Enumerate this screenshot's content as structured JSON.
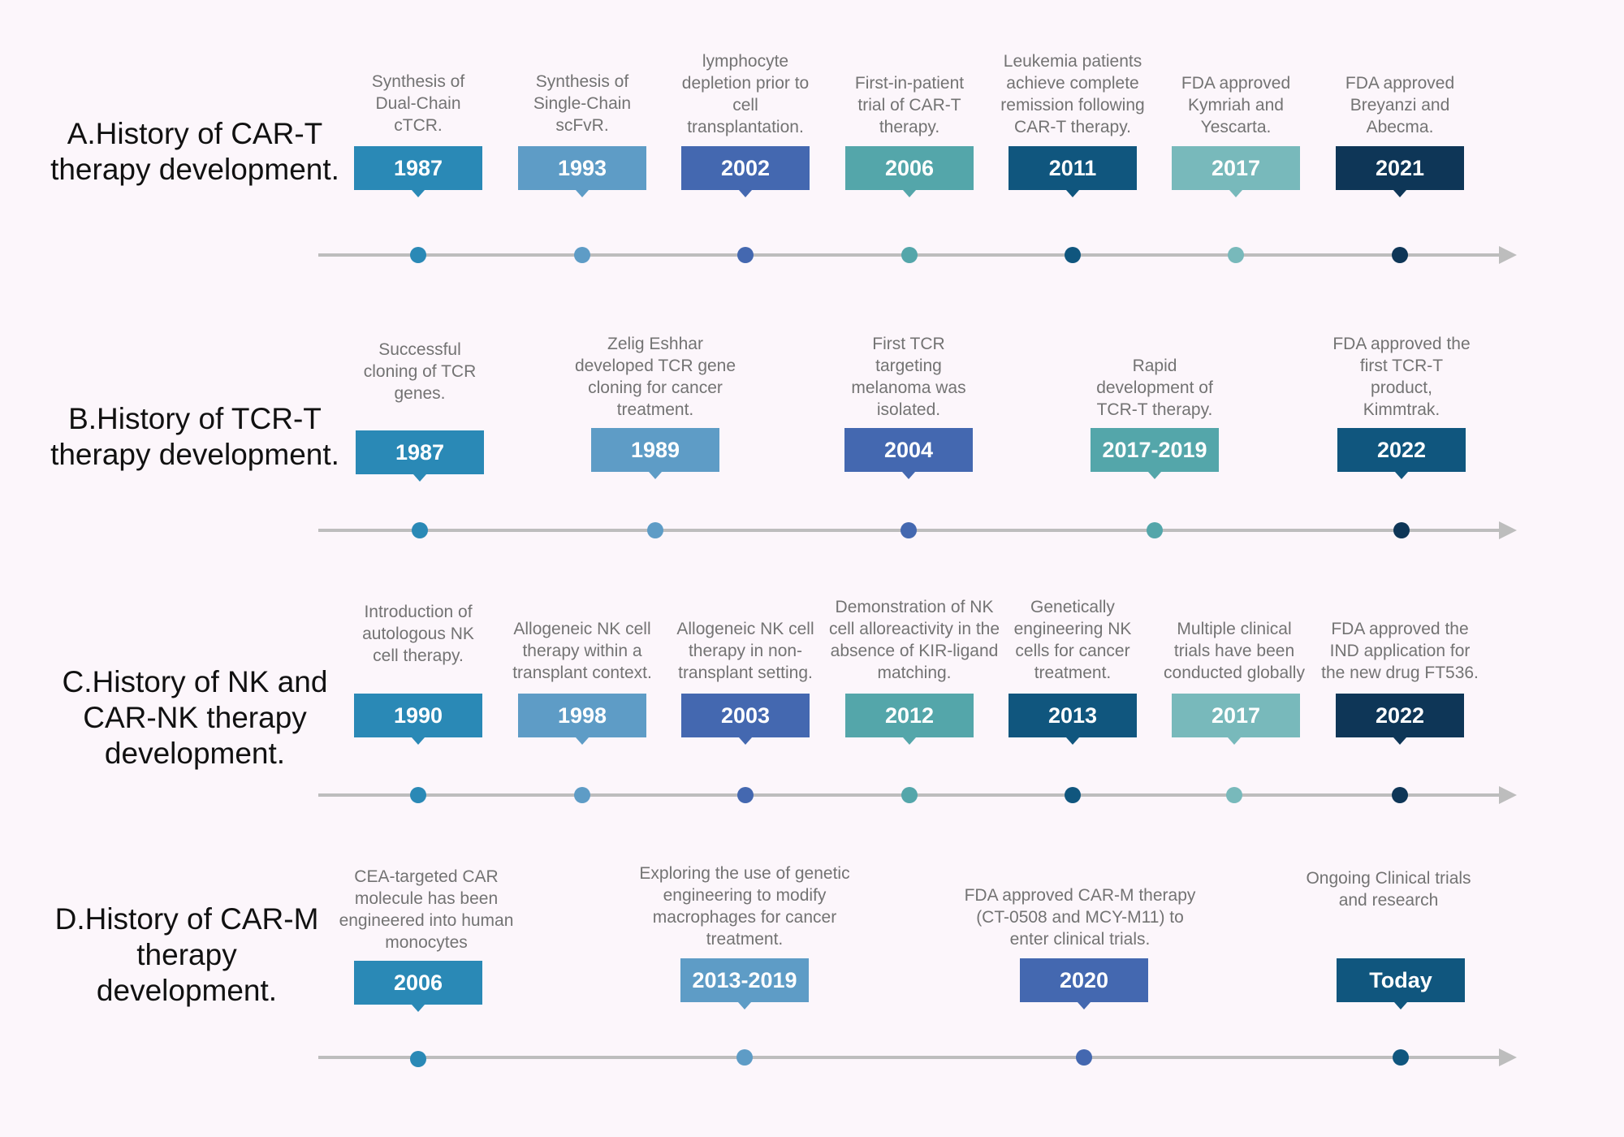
{
  "colors": {
    "c1": "#2a89b6",
    "c2": "#5e9cc6",
    "c3": "#4468b0",
    "c4": "#54a6aa",
    "c5": "#10567e",
    "c6": "#78b9bb",
    "c7": "#0e3657",
    "axis": "#bdbdbd"
  },
  "rows": [
    {
      "title": "A.History of CAR-T therapy development.",
      "events": [
        {
          "year": "1987",
          "text": "Synthesis of Dual-Chain cTCR.",
          "color": "#2a89b6"
        },
        {
          "year": "1993",
          "text": "Synthesis of Single-Chain scFvR.",
          "color": "#5e9cc6"
        },
        {
          "year": "2002",
          "text": "lymphocyte depletion prior to cell transplantation.",
          "color": "#4468b0"
        },
        {
          "year": "2006",
          "text": "First-in-patient trial of CAR-T therapy.",
          "color": "#54a6aa"
        },
        {
          "year": "2011",
          "text": "Leukemia patients achieve complete remission following CAR-T therapy.",
          "color": "#10567e"
        },
        {
          "year": "2017",
          "text": "FDA approved Kymriah and Yescarta.",
          "color": "#78b9bb"
        },
        {
          "year": "2021",
          "text": "FDA approved Breyanzi and Abecma.",
          "color": "#0e3657"
        }
      ]
    },
    {
      "title": "B.History of TCR-T therapy development.",
      "events": [
        {
          "year": "1987",
          "text": "Successful cloning of TCR genes.",
          "color": "#2a89b6"
        },
        {
          "year": "1989",
          "text": "Zelig Eshhar developed TCR gene cloning for cancer treatment.",
          "color": "#5e9cc6"
        },
        {
          "year": "2004",
          "text": "First TCR targeting melanoma was isolated.",
          "color": "#4468b0"
        },
        {
          "year": "2017-2019",
          "text": "Rapid development of TCR-T therapy.",
          "color": "#54a6aa"
        },
        {
          "year": "2022",
          "text": "FDA approved the first TCR-T product, Kimmtrak.",
          "color": "#10567e"
        }
      ]
    },
    {
      "title": "C.History of NK and CAR-NK therapy development.",
      "events": [
        {
          "year": "1990",
          "text": "Introduction of autologous NK cell therapy.",
          "color": "#2a89b6"
        },
        {
          "year": "1998",
          "text": "Allogeneic NK cell therapy within a transplant context.",
          "color": "#5e9cc6"
        },
        {
          "year": "2003",
          "text": "Allogeneic NK cell therapy in non-transplant setting.",
          "color": "#4468b0"
        },
        {
          "year": "2012",
          "text": "Demonstration of NK cell alloreactivity in the absence of KIR-ligand matching.",
          "color": "#54a6aa"
        },
        {
          "year": "2013",
          "text": "Genetically engineering NK cells for cancer treatment.",
          "color": "#10567e"
        },
        {
          "year": "2017",
          "text": "Multiple clinical trials have been conducted globally",
          "color": "#78b9bb"
        },
        {
          "year": "2022",
          "text": "FDA approved the IND application for the new drug FT536.",
          "color": "#0e3657"
        }
      ]
    },
    {
      "title": "D.History of CAR-M therapy development.",
      "events": [
        {
          "year": "2006",
          "text": "CEA-targeted CAR molecule has been engineered into human monocytes",
          "color": "#2a89b6"
        },
        {
          "year": "2013-2019",
          "text": "Exploring the use of genetic engineering to modify macrophages for cancer treatment.",
          "color": "#5e9cc6"
        },
        {
          "year": "2020",
          "text": "FDA approved CAR-M therapy (CT-0508 and MCY-M11) to enter clinical trials.",
          "color": "#4468b0"
        },
        {
          "year": "Today",
          "text": "Ongoing Clinical trials and research",
          "color": "#10567e"
        }
      ]
    }
  ]
}
